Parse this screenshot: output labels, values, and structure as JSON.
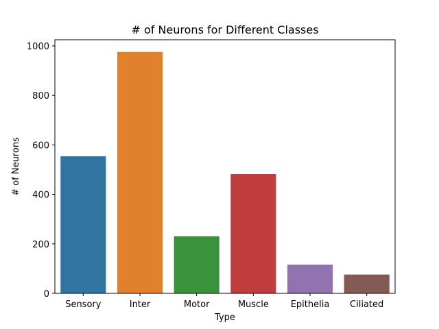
{
  "chart_data": {
    "type": "bar",
    "title": "# of Neurons for Different Classes",
    "xlabel": "Type",
    "ylabel": "# of Neurons",
    "categories": [
      "Sensory",
      "Inter",
      "Motor",
      "Muscle",
      "Epithelia",
      "Ciliated"
    ],
    "values": [
      554,
      976,
      231,
      482,
      116,
      76
    ],
    "colors": [
      "#3274a1",
      "#e1812c",
      "#3a923a",
      "#c03d3e",
      "#9372b2",
      "#845b53"
    ],
    "ylim": [
      0,
      1025
    ],
    "yticks": [
      0,
      200,
      400,
      600,
      800,
      1000
    ],
    "yticks_labels": [
      "0",
      "200",
      "400",
      "600",
      "800",
      "1000"
    ],
    "grid": false,
    "legend": "none"
  }
}
